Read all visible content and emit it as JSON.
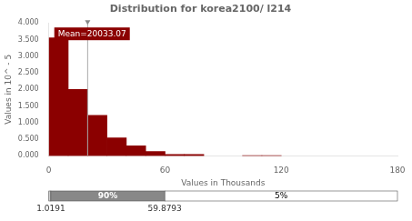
{
  "chart_data": {
    "type": "histogram",
    "title": "Distribution for korea2100/ l214",
    "x_label": "Values in Thousands",
    "y_label": "Values in 10^ - 5",
    "x": [
      0,
      10,
      20,
      30,
      40,
      50,
      60,
      70,
      100,
      110
    ],
    "values": [
      3.55,
      2.0,
      1.22,
      0.54,
      0.3,
      0.13,
      0.04,
      0.04,
      0.006,
      0.006
    ],
    "bin_width": 10,
    "color": "#8B0000",
    "xlim": [
      0,
      180
    ],
    "xticks": [
      0,
      60,
      120,
      180
    ],
    "ylim": [
      0,
      4.0
    ],
    "yticks": [
      {
        "value": 0,
        "label": "0.000"
      },
      {
        "value": 0.5,
        "label": "0.500"
      },
      {
        "value": 1.0,
        "label": "1.000"
      },
      {
        "value": 1.5,
        "label": "1.500"
      },
      {
        "value": 2.0,
        "label": "2.000"
      },
      {
        "value": 2.5,
        "label": "2.500"
      },
      {
        "value": 3.0,
        "label": "3.000"
      },
      {
        "value": 3.5,
        "label": "3.500"
      },
      {
        "value": 4.0,
        "label": "4.000"
      }
    ],
    "grid": false,
    "legend": false,
    "mean": 20.03307,
    "mean_label": "Mean=20033.07",
    "percentile_bar": {
      "left": 1.0191,
      "right": 59.8793,
      "middle_label": "90%",
      "right_label": "5%",
      "left_value_label": "1.0191",
      "right_value_label": "59.8793"
    }
  }
}
